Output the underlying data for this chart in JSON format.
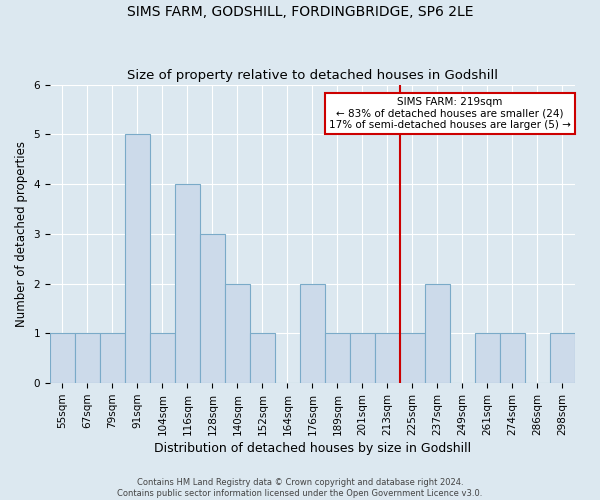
{
  "title": "SIMS FARM, GODSHILL, FORDINGBRIDGE, SP6 2LE",
  "subtitle": "Size of property relative to detached houses in Godshill",
  "xlabel": "Distribution of detached houses by size in Godshill",
  "ylabel": "Number of detached properties",
  "categories": [
    "55sqm",
    "67sqm",
    "79sqm",
    "91sqm",
    "104sqm",
    "116sqm",
    "128sqm",
    "140sqm",
    "152sqm",
    "164sqm",
    "176sqm",
    "189sqm",
    "201sqm",
    "213sqm",
    "225sqm",
    "237sqm",
    "249sqm",
    "261sqm",
    "274sqm",
    "286sqm",
    "298sqm"
  ],
  "values": [
    1,
    1,
    1,
    5,
    1,
    4,
    3,
    2,
    1,
    0,
    2,
    1,
    1,
    1,
    1,
    2,
    0,
    1,
    1,
    0,
    1
  ],
  "bar_color": "#ccdaea",
  "bar_edgecolor": "#7aaac8",
  "background_color": "#dce8f0",
  "plot_bg_color": "#dce8f0",
  "grid_color": "#ffffff",
  "vline_x": 14,
  "vline_color": "#cc0000",
  "annotation_title": "SIMS FARM: 219sqm",
  "annotation_line1": "← 83% of detached houses are smaller (24)",
  "annotation_line2": "17% of semi-detached houses are larger (5) →",
  "annotation_box_facecolor": "#ffffff",
  "annotation_box_edgecolor": "#cc0000",
  "ylim": [
    0,
    6
  ],
  "yticks": [
    0,
    1,
    2,
    3,
    4,
    5,
    6
  ],
  "footer": "Contains HM Land Registry data © Crown copyright and database right 2024.\nContains public sector information licensed under the Open Government Licence v3.0.",
  "title_fontsize": 10,
  "subtitle_fontsize": 9.5,
  "xlabel_fontsize": 9,
  "ylabel_fontsize": 8.5,
  "tick_fontsize": 7.5,
  "annotation_fontsize": 7.5,
  "footer_fontsize": 6
}
